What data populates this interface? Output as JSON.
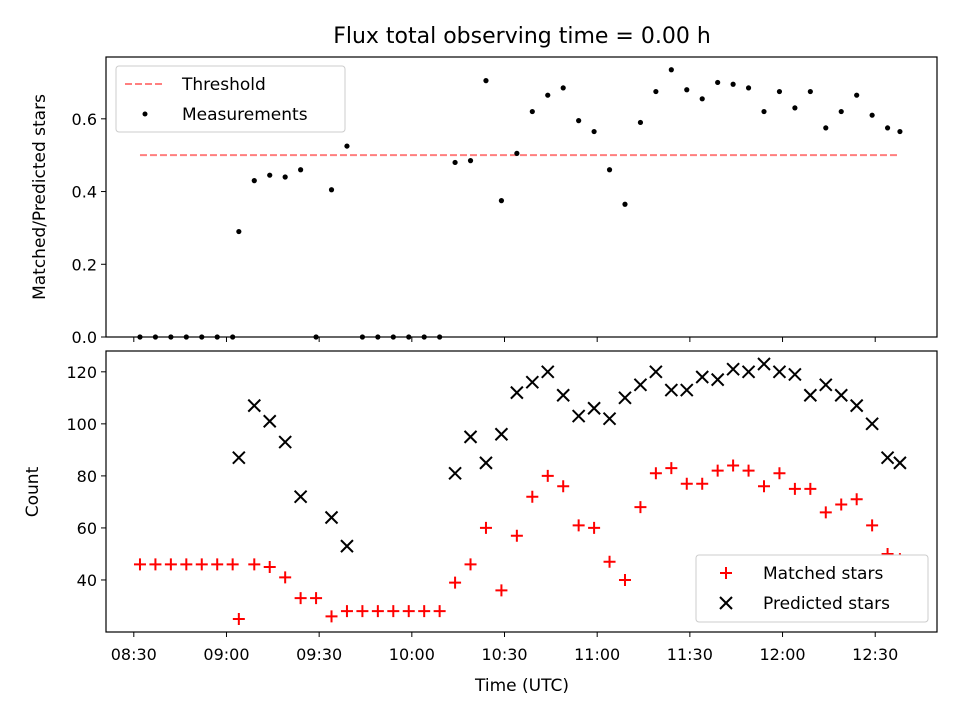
{
  "chart_data": [
    {
      "type": "scatter",
      "title": "Flux total observing time = 0.00 h",
      "xlabel": "",
      "ylabel": "Matched/Predicted stars",
      "ylim": [
        0,
        0.77
      ],
      "yticks": [
        "0.0",
        "0.2",
        "0.4",
        "0.6"
      ],
      "ytick_values": [
        0,
        0.2,
        0.4,
        0.6
      ],
      "legend_position": "upper-left",
      "grid": false,
      "threshold": {
        "name": "Threshold",
        "value": 0.5,
        "color": "#ff7f7f",
        "style": "dashed",
        "x_start": "08:32",
        "x_end": "12:38"
      },
      "series": [
        {
          "name": "Measurements",
          "marker": "dot",
          "color": "#000000",
          "x": [
            "08:32",
            "08:37",
            "08:42",
            "08:47",
            "08:52",
            "08:57",
            "09:02",
            "09:04",
            "09:09",
            "09:14",
            "09:19",
            "09:24",
            "09:29",
            "09:34",
            "09:39",
            "09:44",
            "09:49",
            "09:54",
            "09:59",
            "10:04",
            "10:09",
            "10:14",
            "10:19",
            "10:24",
            "10:29",
            "10:34",
            "10:39",
            "10:44",
            "10:49",
            "10:54",
            "10:59",
            "11:04",
            "11:09",
            "11:14",
            "11:19",
            "11:24",
            "11:29",
            "11:34",
            "11:39",
            "11:44",
            "11:49",
            "11:54",
            "11:59",
            "12:04",
            "12:09",
            "12:14",
            "12:19",
            "12:24",
            "12:29",
            "12:34",
            "12:38"
          ],
          "y": [
            0,
            0,
            0,
            0,
            0,
            0,
            0,
            0.29,
            0.43,
            0.445,
            0.44,
            0.46,
            0,
            0.405,
            0.525,
            0,
            0,
            0,
            0,
            0,
            0,
            0.48,
            0.485,
            0.705,
            0.375,
            0.505,
            0.62,
            0.665,
            0.685,
            0.595,
            0.565,
            0.46,
            0.365,
            0.59,
            0.675,
            0.735,
            0.68,
            0.655,
            0.7,
            0.695,
            0.685,
            0.62,
            0.675,
            0.63,
            0.675,
            0.575,
            0.62,
            0.665,
            0.61,
            0.575,
            0.565
          ]
        }
      ]
    },
    {
      "type": "scatter",
      "title": "",
      "xlabel": "Time (UTC)",
      "ylabel": "Count",
      "xlim": [
        "08:21",
        "12:50"
      ],
      "ylim": [
        20,
        128
      ],
      "xticks": [
        "08:30",
        "09:00",
        "09:30",
        "10:00",
        "10:30",
        "11:00",
        "11:30",
        "12:00",
        "12:30"
      ],
      "yticks": [
        "40",
        "60",
        "80",
        "100",
        "120"
      ],
      "ytick_values": [
        40,
        60,
        80,
        100,
        120
      ],
      "legend_position": "lower-right",
      "grid": false,
      "series": [
        {
          "name": "Matched stars",
          "marker": "plus",
          "color": "#ff0000",
          "x": [
            "08:32",
            "08:37",
            "08:42",
            "08:47",
            "08:52",
            "08:57",
            "09:02",
            "09:04",
            "09:09",
            "09:14",
            "09:19",
            "09:24",
            "09:29",
            "09:34",
            "09:39",
            "09:44",
            "09:49",
            "09:54",
            "09:59",
            "10:04",
            "10:09",
            "10:14",
            "10:19",
            "10:24",
            "10:29",
            "10:34",
            "10:39",
            "10:44",
            "10:49",
            "10:54",
            "10:59",
            "11:04",
            "11:09",
            "11:14",
            "11:19",
            "11:24",
            "11:29",
            "11:34",
            "11:39",
            "11:44",
            "11:49",
            "11:54",
            "11:59",
            "12:04",
            "12:09",
            "12:14",
            "12:19",
            "12:24",
            "12:29",
            "12:34",
            "12:38"
          ],
          "y": [
            46,
            46,
            46,
            46,
            46,
            46,
            46,
            25,
            46,
            45,
            41,
            33,
            33,
            26,
            28,
            28,
            28,
            28,
            28,
            28,
            28,
            39,
            46,
            60,
            36,
            57,
            72,
            80,
            76,
            61,
            60,
            47,
            40,
            68,
            81,
            83,
            77,
            77,
            82,
            84,
            82,
            76,
            81,
            75,
            75,
            66,
            69,
            71,
            61,
            50,
            48
          ]
        },
        {
          "name": "Predicted stars",
          "marker": "x",
          "color": "#000000",
          "x": [
            "09:04",
            "09:09",
            "09:14",
            "09:19",
            "09:24",
            "09:34",
            "09:39",
            "10:14",
            "10:19",
            "10:24",
            "10:29",
            "10:34",
            "10:39",
            "10:44",
            "10:49",
            "10:54",
            "10:59",
            "11:04",
            "11:09",
            "11:14",
            "11:19",
            "11:24",
            "11:29",
            "11:34",
            "11:39",
            "11:44",
            "11:49",
            "11:54",
            "11:59",
            "12:04",
            "12:09",
            "12:14",
            "12:19",
            "12:24",
            "12:29",
            "12:34",
            "12:38"
          ],
          "y": [
            87,
            107,
            101,
            93,
            72,
            64,
            53,
            81,
            95,
            85,
            96,
            112,
            116,
            120,
            111,
            103,
            106,
            102,
            110,
            115,
            120,
            113,
            113,
            118,
            117,
            121,
            120,
            123,
            120,
            119,
            111,
            115,
            111,
            107,
            100,
            87,
            85
          ]
        }
      ]
    }
  ]
}
